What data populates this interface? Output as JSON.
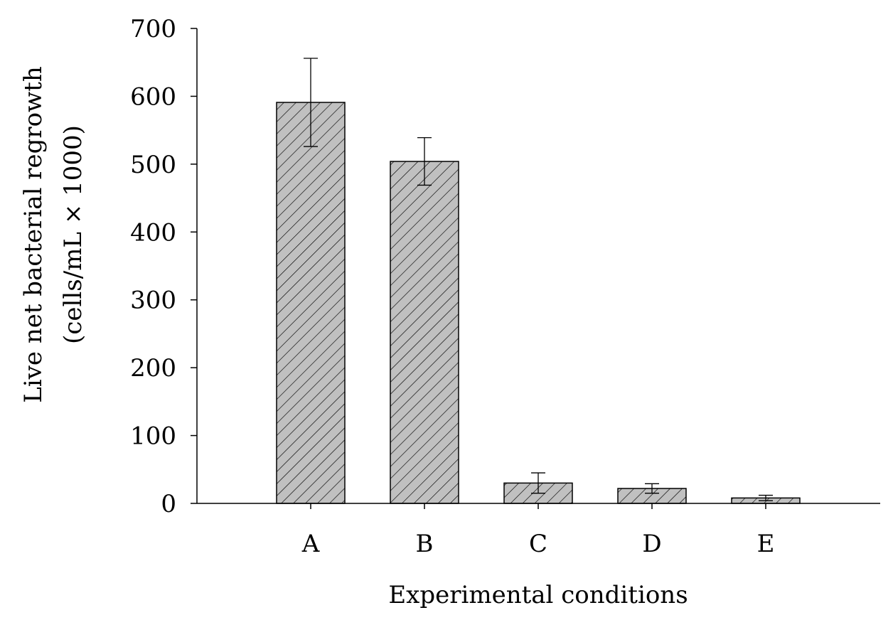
{
  "chart_data": {
    "type": "bar",
    "categories": [
      "A",
      "B",
      "C",
      "D",
      "E"
    ],
    "values": [
      591,
      504,
      30,
      22,
      8
    ],
    "errors": [
      65,
      35,
      15,
      7,
      4
    ],
    "xlabel": "Experimental conditions",
    "ylabel_line1": "Live net bacterial regrowth",
    "ylabel_line2": "(cells/mL × 1000)",
    "ylim": [
      0,
      700
    ],
    "yticks": [
      0,
      100,
      200,
      300,
      400,
      500,
      600,
      700
    ],
    "bar_fill": "#c0c0c0",
    "hatch_color": "#000000",
    "grid": false
  }
}
